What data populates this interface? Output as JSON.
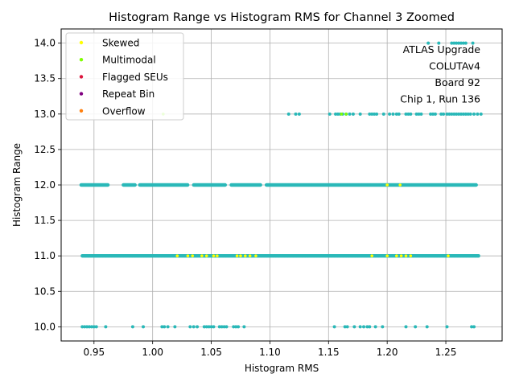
{
  "chart_data": {
    "type": "scatter",
    "title": "Histogram Range vs Histogram RMS for Channel 3 Zoomed",
    "xlabel": "Histogram RMS",
    "ylabel": "Histogram Range",
    "xlim": [
      0.922,
      1.298
    ],
    "ylim": [
      9.8,
      14.2
    ],
    "xticks": [
      "0.95",
      "1.00",
      "1.05",
      "1.10",
      "1.15",
      "1.20",
      "1.25"
    ],
    "yticks": [
      "10.0",
      "10.5",
      "11.0",
      "11.5",
      "12.0",
      "12.5",
      "13.0",
      "13.5",
      "14.0"
    ],
    "grid": true,
    "legend_position": "top-left",
    "legend": [
      {
        "label": "Skewed",
        "color": "#ffff00"
      },
      {
        "label": "Multimodal",
        "color": "#7fff00"
      },
      {
        "label": "Flagged SEUs",
        "color": "#dc143c"
      },
      {
        "label": "Repeat Bin",
        "color": "#800080"
      },
      {
        "label": "Overflow",
        "color": "#ff7f0e"
      }
    ],
    "annotation": [
      "ATLAS Upgrade",
      "COLUTAv4",
      "Board 92",
      "Chip 1, Run 136"
    ],
    "point_color": "#2ab8b8",
    "series": [
      {
        "color": "#2ab8b8",
        "points": [
          [
            0.94,
            10
          ],
          [
            0.942,
            10
          ],
          [
            0.944,
            10
          ],
          [
            0.946,
            10
          ],
          [
            0.948,
            10
          ],
          [
            0.95,
            10
          ],
          [
            0.952,
            10
          ],
          [
            0.96,
            10
          ],
          [
            0.983,
            10
          ],
          [
            0.992,
            10
          ],
          [
            1.008,
            10
          ],
          [
            1.01,
            10
          ],
          [
            1.013,
            10
          ],
          [
            1.019,
            10
          ],
          [
            1.032,
            10
          ],
          [
            1.035,
            10
          ],
          [
            1.038,
            10
          ],
          [
            1.044,
            10
          ],
          [
            1.046,
            10
          ],
          [
            1.048,
            10
          ],
          [
            1.05,
            10
          ],
          [
            1.052,
            10
          ],
          [
            1.057,
            10
          ],
          [
            1.059,
            10
          ],
          [
            1.061,
            10
          ],
          [
            1.063,
            10
          ],
          [
            1.069,
            10
          ],
          [
            1.071,
            10
          ],
          [
            1.073,
            10
          ],
          [
            1.078,
            10
          ],
          [
            1.155,
            10
          ],
          [
            1.164,
            10
          ],
          [
            1.166,
            10
          ],
          [
            1.172,
            10
          ],
          [
            1.177,
            10
          ],
          [
            1.18,
            10
          ],
          [
            1.183,
            10
          ],
          [
            1.185,
            10
          ],
          [
            1.19,
            10
          ],
          [
            1.196,
            10
          ],
          [
            1.216,
            10
          ],
          [
            1.224,
            10
          ],
          [
            1.234,
            10
          ],
          [
            1.251,
            10
          ],
          [
            1.272,
            10
          ],
          [
            1.274,
            10
          ],
          [
            1.116,
            13
          ],
          [
            1.122,
            13
          ],
          [
            1.125,
            13
          ],
          [
            1.151,
            13
          ],
          [
            1.156,
            13
          ],
          [
            1.158,
            13
          ],
          [
            1.16,
            13
          ],
          [
            1.162,
            13
          ],
          [
            1.165,
            13
          ],
          [
            1.168,
            13
          ],
          [
            1.171,
            13
          ],
          [
            1.177,
            13
          ],
          [
            1.185,
            13
          ],
          [
            1.187,
            13
          ],
          [
            1.189,
            13
          ],
          [
            1.191,
            13
          ],
          [
            1.197,
            13
          ],
          [
            1.202,
            13
          ],
          [
            1.205,
            13
          ],
          [
            1.208,
            13
          ],
          [
            1.21,
            13
          ],
          [
            1.216,
            13
          ],
          [
            1.218,
            13
          ],
          [
            1.22,
            13
          ],
          [
            1.225,
            13
          ],
          [
            1.227,
            13
          ],
          [
            1.229,
            13
          ],
          [
            1.237,
            13
          ],
          [
            1.239,
            13
          ],
          [
            1.241,
            13
          ],
          [
            1.246,
            13
          ],
          [
            1.248,
            13
          ],
          [
            1.251,
            13
          ],
          [
            1.253,
            13
          ],
          [
            1.255,
            13
          ],
          [
            1.257,
            13
          ],
          [
            1.259,
            13
          ],
          [
            1.261,
            13
          ],
          [
            1.263,
            13
          ],
          [
            1.265,
            13
          ],
          [
            1.267,
            13
          ],
          [
            1.269,
            13
          ],
          [
            1.271,
            13
          ],
          [
            1.274,
            13
          ],
          [
            1.277,
            13
          ],
          [
            1.28,
            13
          ],
          [
            1.235,
            14
          ],
          [
            1.244,
            14
          ],
          [
            1.255,
            14
          ],
          [
            1.257,
            14
          ],
          [
            1.259,
            14
          ],
          [
            1.261,
            14
          ],
          [
            1.263,
            14
          ],
          [
            1.265,
            14
          ],
          [
            1.267,
            14
          ],
          [
            1.273,
            14
          ]
        ]
      },
      {
        "color": "#2ab8b8",
        "band": true,
        "y": 12,
        "ranges": [
          [
            0.939,
            0.962
          ],
          [
            0.975,
            0.985
          ],
          [
            0.989,
            1.03
          ],
          [
            1.035,
            1.062
          ],
          [
            1.067,
            1.092
          ],
          [
            1.097,
            1.276
          ]
        ]
      },
      {
        "color": "#2ab8b8",
        "band": true,
        "y": 11,
        "ranges": [
          [
            0.94,
            1.278
          ]
        ]
      }
    ],
    "highlight_points": [
      {
        "color": "#ffff00",
        "points": [
          [
            1.021,
            11
          ],
          [
            1.03,
            11
          ],
          [
            1.034,
            11
          ],
          [
            1.042,
            11
          ],
          [
            1.046,
            11
          ],
          [
            1.052,
            11
          ],
          [
            1.055,
            11
          ],
          [
            1.072,
            11
          ],
          [
            1.075,
            11
          ],
          [
            1.079,
            11
          ],
          [
            1.083,
            11
          ],
          [
            1.088,
            11
          ],
          [
            1.187,
            11
          ],
          [
            1.2,
            11
          ],
          [
            1.208,
            11
          ],
          [
            1.212,
            11
          ],
          [
            1.216,
            11
          ],
          [
            1.22,
            11
          ],
          [
            1.252,
            11
          ],
          [
            1.2,
            12
          ],
          [
            1.211,
            12
          ]
        ]
      },
      {
        "color": "#7fff00",
        "points": [
          [
            1.009,
            13
          ],
          [
            1.161,
            13
          ],
          [
            1.165,
            13
          ]
        ]
      }
    ],
    "axis_range_note": ""
  }
}
